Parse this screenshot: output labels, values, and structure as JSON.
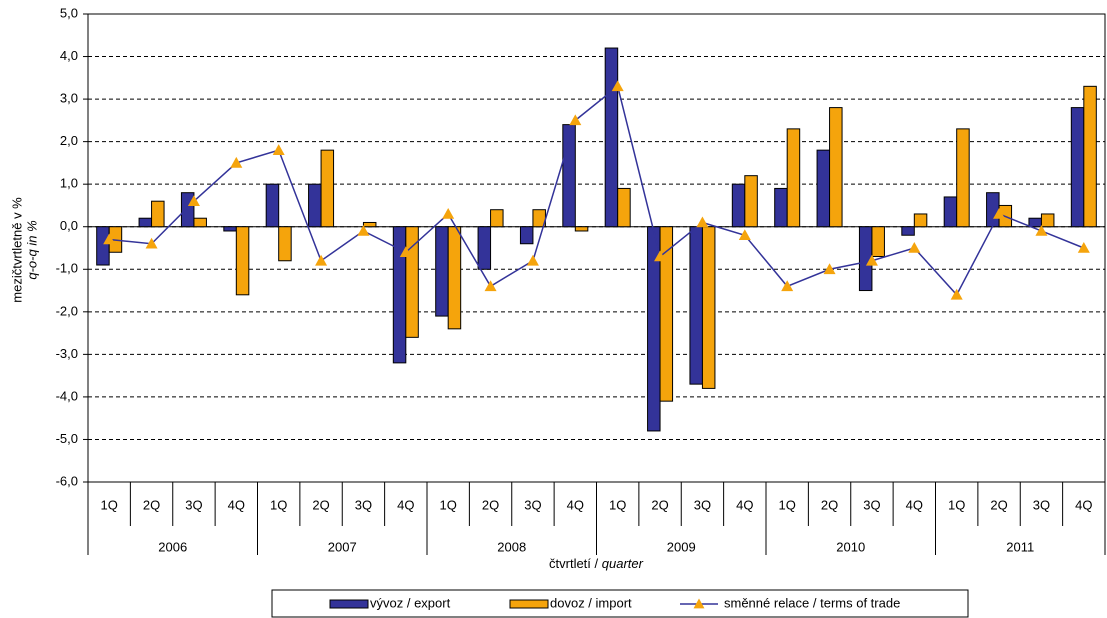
{
  "chart_data": {
    "type": "bar-line",
    "y_label": [
      "mezičtvrtletně v %",
      "q-o-q  in %"
    ],
    "x_label": {
      "text": "čtvrtletí /",
      "italic": "quarter"
    },
    "categories": [
      "1Q",
      "2Q",
      "3Q",
      "4Q",
      "1Q",
      "2Q",
      "3Q",
      "4Q",
      "1Q",
      "2Q",
      "3Q",
      "4Q",
      "1Q",
      "2Q",
      "3Q",
      "4Q",
      "1Q",
      "2Q",
      "3Q",
      "4Q",
      "1Q",
      "2Q",
      "3Q",
      "4Q"
    ],
    "years": [
      "2006",
      "2007",
      "2008",
      "2009",
      "2010",
      "2011"
    ],
    "series": [
      {
        "name": "vývoz / export",
        "type": "bar",
        "color": "#333399",
        "values": [
          -0.9,
          0.2,
          0.8,
          -0.1,
          1.0,
          1.0,
          0.0,
          -3.2,
          -2.1,
          -1.0,
          -0.4,
          2.4,
          4.2,
          -4.8,
          -3.7,
          1.0,
          0.9,
          1.8,
          -1.5,
          -0.2,
          0.7,
          0.8,
          0.2,
          2.8
        ]
      },
      {
        "name": "dovoz / import",
        "type": "bar",
        "color": "#f5a40c",
        "values": [
          -0.6,
          0.6,
          0.2,
          -1.6,
          -0.8,
          1.8,
          0.1,
          -2.6,
          -2.4,
          0.4,
          0.4,
          -0.1,
          0.9,
          -4.1,
          -3.8,
          1.2,
          2.3,
          2.8,
          -0.7,
          0.3,
          2.3,
          0.5,
          0.3,
          3.3
        ]
      },
      {
        "name": "směnné relace / terms of trade",
        "type": "line",
        "color": "#333399",
        "marker_color": "#f5a40c",
        "values": [
          -0.3,
          -0.4,
          0.6,
          1.5,
          1.8,
          -0.8,
          -0.1,
          -0.6,
          0.3,
          -1.4,
          -0.8,
          2.5,
          3.3,
          -0.7,
          0.1,
          -0.2,
          -1.4,
          -1.0,
          -0.8,
          -0.5,
          -1.6,
          0.3,
          -0.1,
          -0.5
        ]
      }
    ],
    "ylim": [
      -6,
      5
    ],
    "yticks": [
      {
        "value": -6,
        "label": "-6,0"
      },
      {
        "value": -5,
        "label": "-5,0"
      },
      {
        "value": -4,
        "label": "-4,0"
      },
      {
        "value": -3,
        "label": "-3,0"
      },
      {
        "value": -2,
        "label": "-2,0"
      },
      {
        "value": -1,
        "label": "-1,0"
      },
      {
        "value": 0,
        "label": "0,0"
      },
      {
        "value": 1,
        "label": "1,0"
      },
      {
        "value": 2,
        "label": "2,0"
      },
      {
        "value": 3,
        "label": "3,0"
      },
      {
        "value": 4,
        "label": "4,0"
      },
      {
        "value": 5,
        "label": "5,0"
      }
    ],
    "grid": true
  }
}
